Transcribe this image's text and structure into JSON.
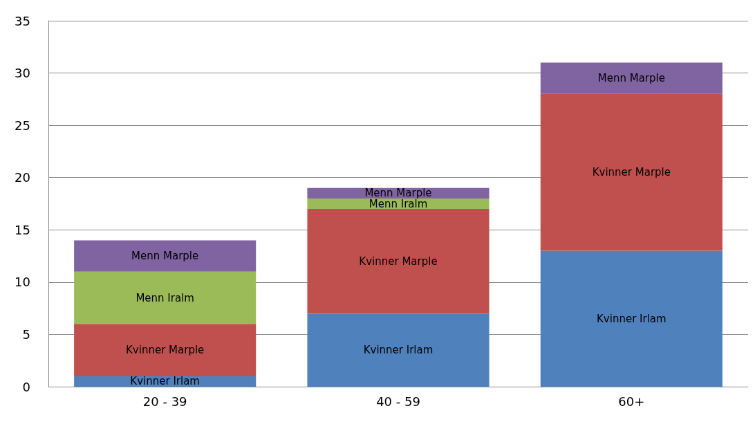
{
  "chart_data": {
    "type": "bar",
    "stacked": true,
    "categories": [
      "20 - 39",
      "40 - 59",
      "60+"
    ],
    "series": [
      {
        "name": "Kvinner Irlam",
        "color": "#4f81bd",
        "values": [
          1,
          7,
          13
        ]
      },
      {
        "name": "Kvinner Marple",
        "color": "#c0504d",
        "values": [
          5,
          10,
          15
        ]
      },
      {
        "name": "Menn Iralm",
        "color": "#9bbb59",
        "values": [
          5,
          1,
          null
        ]
      },
      {
        "name": "Menn Marple",
        "color": "#8064a2",
        "values": [
          3,
          1,
          3
        ]
      }
    ],
    "ylim": [
      0,
      35
    ],
    "yticks": [
      0,
      5,
      10,
      15,
      20,
      25,
      30,
      35
    ],
    "grid": "y",
    "legend": false
  }
}
